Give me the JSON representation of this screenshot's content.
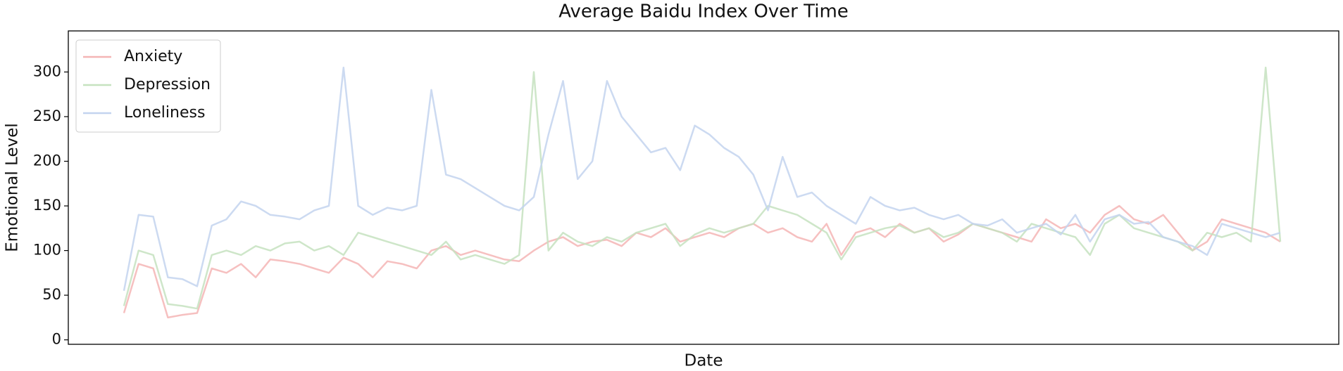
{
  "chart_data": {
    "type": "line",
    "title": "Average Baidu Index Over Time",
    "x_label": "Date",
    "y_label": "Emotional Level",
    "ylim": [
      -5,
      346
    ],
    "yticks": [
      0,
      50,
      100,
      150,
      200,
      250,
      300
    ],
    "legend": "upper left",
    "grid": false,
    "series": [
      {
        "name": "Anxiety",
        "color": "#f4b5b5",
        "values": [
          30,
          85,
          80,
          25,
          28,
          30,
          80,
          75,
          85,
          70,
          90,
          88,
          85,
          80,
          75,
          92,
          85,
          70,
          88,
          85,
          80,
          100,
          105,
          95,
          100,
          95,
          90,
          88,
          100,
          110,
          115,
          105,
          110,
          112,
          105,
          120,
          115,
          125,
          110,
          115,
          120,
          115,
          125,
          130,
          120,
          125,
          115,
          110,
          130,
          95,
          120,
          125,
          115,
          130,
          120,
          125,
          110,
          118,
          130,
          125,
          120,
          115,
          110,
          135,
          125,
          130,
          120,
          140,
          150,
          135,
          130,
          140,
          120,
          100,
          110,
          135,
          130,
          125,
          120,
          110
        ]
      },
      {
        "name": "Depression",
        "color": "#c6e2bf",
        "values": [
          38,
          100,
          95,
          40,
          38,
          35,
          95,
          100,
          95,
          105,
          100,
          108,
          110,
          100,
          105,
          95,
          120,
          115,
          110,
          105,
          100,
          95,
          110,
          90,
          95,
          90,
          85,
          95,
          300,
          100,
          120,
          110,
          105,
          115,
          110,
          120,
          125,
          130,
          105,
          118,
          125,
          120,
          125,
          130,
          150,
          145,
          140,
          130,
          120,
          90,
          115,
          120,
          125,
          128,
          120,
          125,
          115,
          120,
          130,
          125,
          120,
          110,
          130,
          125,
          120,
          115,
          95,
          130,
          140,
          125,
          120,
          115,
          110,
          100,
          120,
          115,
          120,
          110,
          305,
          110
        ]
      },
      {
        "name": "Loneliness",
        "color": "#c3d4ef",
        "values": [
          55,
          140,
          138,
          70,
          68,
          60,
          128,
          135,
          155,
          150,
          140,
          138,
          135,
          145,
          150,
          305,
          150,
          140,
          148,
          145,
          150,
          280,
          185,
          180,
          170,
          160,
          150,
          145,
          160,
          230,
          290,
          180,
          200,
          290,
          250,
          230,
          210,
          215,
          190,
          240,
          230,
          215,
          205,
          185,
          145,
          205,
          160,
          165,
          150,
          140,
          130,
          160,
          150,
          145,
          148,
          140,
          135,
          140,
          130,
          128,
          135,
          120,
          125,
          130,
          118,
          140,
          110,
          135,
          140,
          130,
          132,
          115,
          110,
          105,
          95,
          130,
          125,
          120,
          115,
          120
        ]
      }
    ]
  }
}
